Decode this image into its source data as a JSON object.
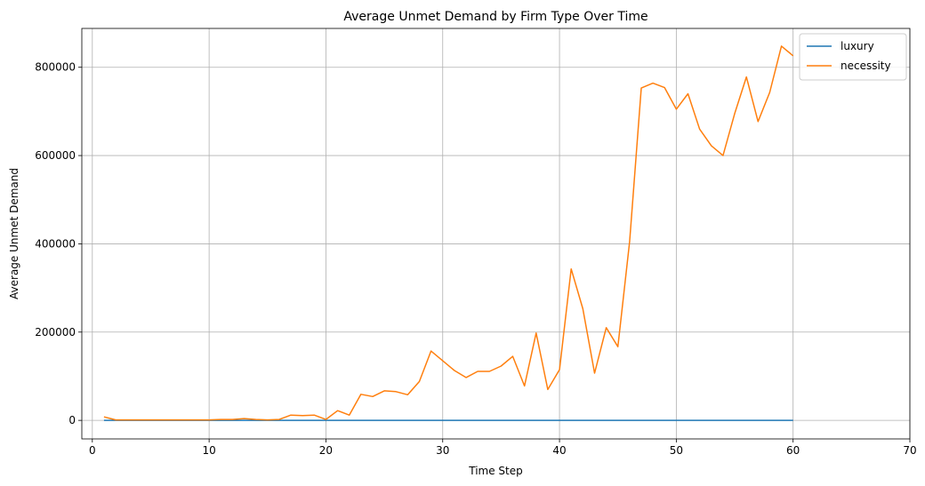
{
  "chart_data": {
    "type": "line",
    "title": "Average Unmet Demand by Firm Type Over Time",
    "xlabel": "Time Step",
    "ylabel": "Average Unmet Demand",
    "xlim": [
      -0.9,
      70
    ],
    "ylim": [
      -42000,
      888000
    ],
    "xticks": [
      0,
      10,
      20,
      30,
      40,
      50,
      60,
      70
    ],
    "yticks": [
      0,
      200000,
      400000,
      600000,
      800000
    ],
    "grid": true,
    "legend_position": "top-right",
    "series": [
      {
        "name": "luxury",
        "color": "#1f77b4",
        "x": [
          1,
          2,
          3,
          4,
          5,
          6,
          7,
          8,
          9,
          10,
          11,
          12,
          13,
          14,
          15,
          16,
          17,
          18,
          19,
          20,
          21,
          22,
          23,
          24,
          25,
          26,
          27,
          28,
          29,
          30,
          31,
          32,
          33,
          34,
          35,
          36,
          37,
          38,
          39,
          40,
          41,
          42,
          43,
          44,
          45,
          46,
          47,
          48,
          49,
          50,
          51,
          52,
          53,
          54,
          55,
          56,
          57,
          58,
          59,
          60
        ],
        "values": [
          0,
          0,
          0,
          0,
          0,
          0,
          0,
          0,
          0,
          0,
          0,
          0,
          0,
          0,
          0,
          0,
          0,
          0,
          0,
          0,
          0,
          0,
          0,
          0,
          0,
          0,
          0,
          0,
          0,
          0,
          0,
          0,
          0,
          0,
          0,
          0,
          0,
          0,
          0,
          0,
          0,
          0,
          0,
          0,
          0,
          0,
          0,
          0,
          0,
          0,
          0,
          0,
          0,
          0,
          0,
          0,
          0,
          0,
          0,
          0
        ]
      },
      {
        "name": "necessity",
        "color": "#ff7f0e",
        "x": [
          1,
          2,
          3,
          4,
          5,
          6,
          7,
          8,
          9,
          10,
          11,
          12,
          13,
          14,
          15,
          16,
          17,
          18,
          19,
          20,
          21,
          22,
          23,
          24,
          25,
          26,
          27,
          28,
          29,
          30,
          31,
          32,
          33,
          34,
          35,
          36,
          37,
          38,
          39,
          40,
          41,
          42,
          43,
          44,
          45,
          46,
          47,
          48,
          49,
          50,
          51,
          52,
          53,
          54,
          55,
          56,
          57,
          58,
          59,
          60
        ],
        "values": [
          8000,
          1000,
          1000,
          1000,
          1000,
          1000,
          1000,
          1000,
          1000,
          1000,
          2000,
          2000,
          4000,
          2000,
          1000,
          2000,
          12000,
          11000,
          12000,
          2000,
          22000,
          12000,
          59000,
          54000,
          67000,
          65000,
          58000,
          88000,
          157000,
          135000,
          113000,
          97000,
          111000,
          111000,
          123000,
          145000,
          78000,
          198000,
          70000,
          115000,
          343000,
          253000,
          107000,
          210000,
          167000,
          405000,
          753000,
          764000,
          754000,
          705000,
          740000,
          660000,
          622000,
          600000,
          695000,
          778000,
          677000,
          743000,
          848000,
          826000
        ]
      }
    ]
  }
}
